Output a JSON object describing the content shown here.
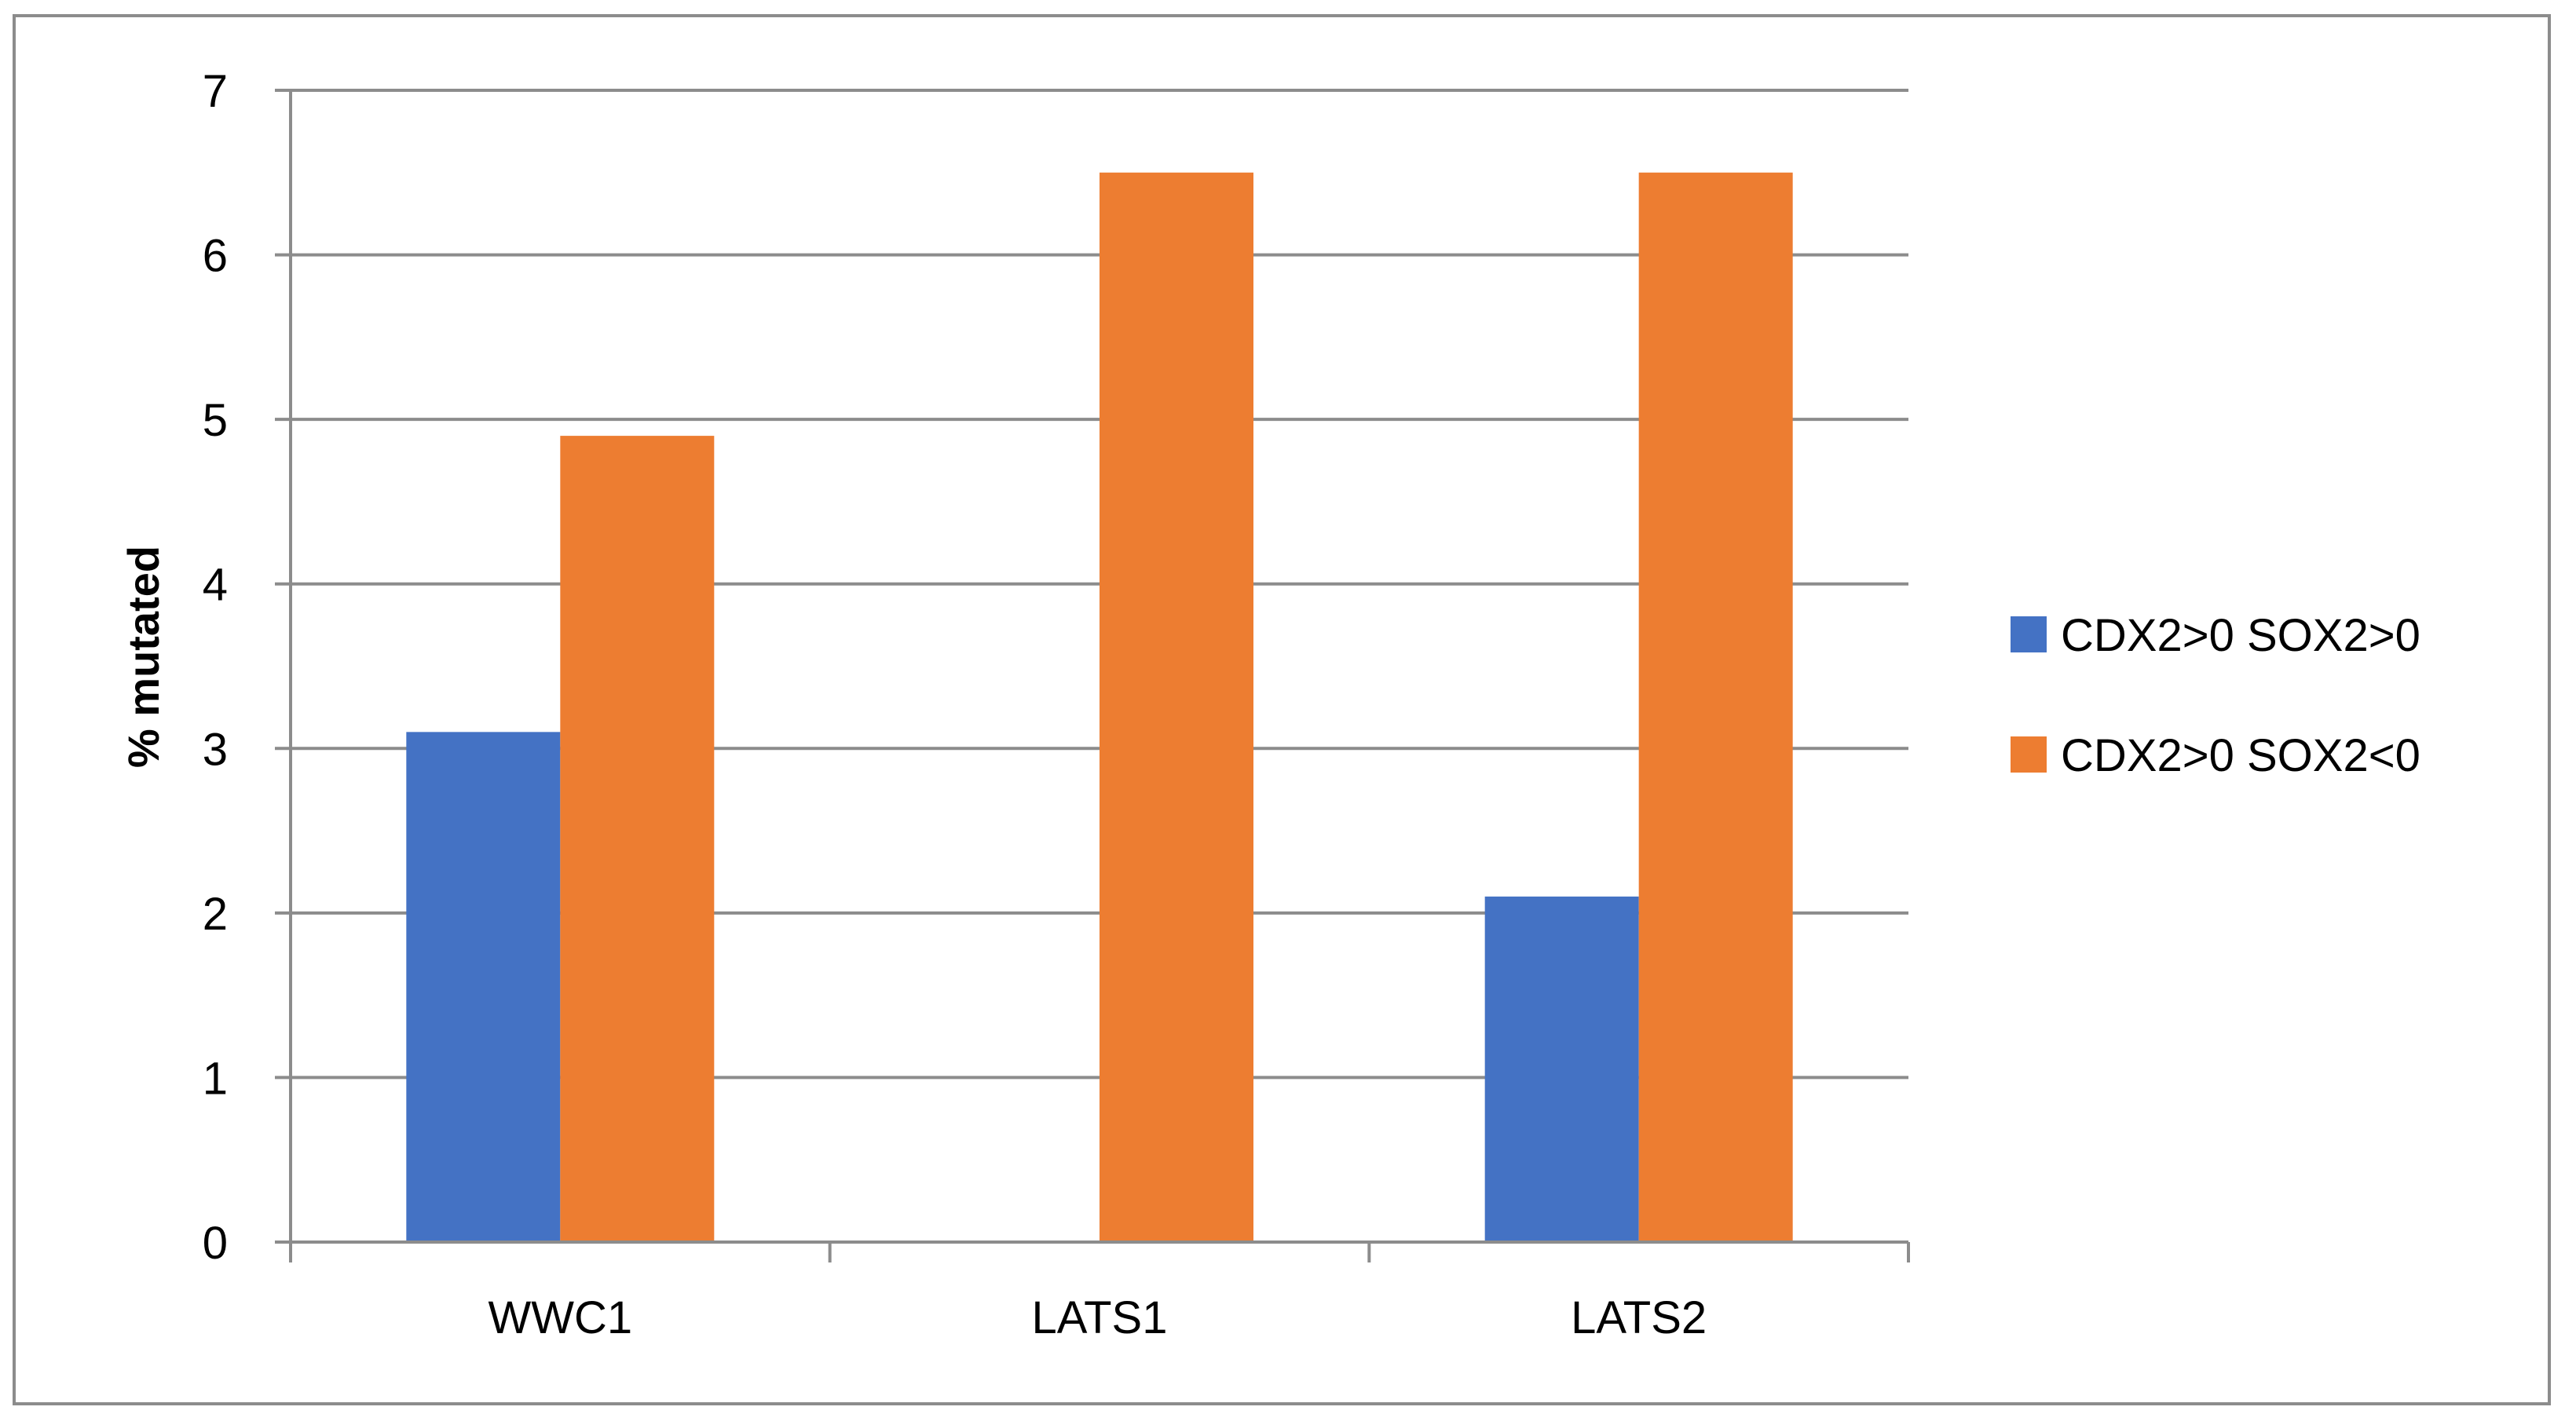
{
  "chart_data": {
    "type": "bar",
    "categories": [
      "WWC1",
      "LATS1",
      "LATS2"
    ],
    "series": [
      {
        "name": "CDX2>0 SOX2>0",
        "values": [
          3.1,
          0,
          2.1
        ],
        "color": "#4472C4"
      },
      {
        "name": "CDX2>0 SOX2<0",
        "values": [
          4.9,
          6.5,
          6.5
        ],
        "color": "#ED7D31"
      }
    ],
    "ylabel": "% mutated",
    "xlabel": "",
    "ylim": [
      0,
      7
    ],
    "yticks": [
      0,
      1,
      2,
      3,
      4,
      5,
      6,
      7
    ],
    "grid": true,
    "legend_position": "right",
    "gridline_color": "#8c8c8c"
  }
}
